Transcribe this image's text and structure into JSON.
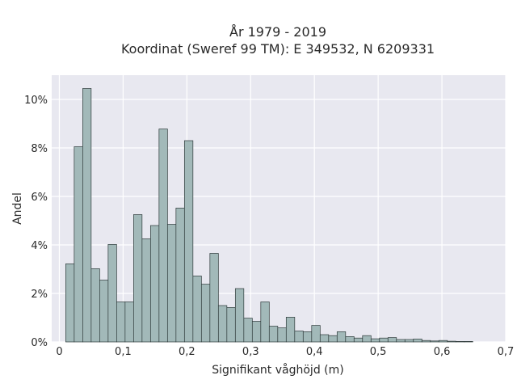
{
  "chart_data": {
    "type": "bar",
    "title_lines": [
      "År 1979 - 2019",
      "Koordinat (Sweref 99 TM): E 349532, N 6209331"
    ],
    "xlabel": "Signifikant våghöjd (m)",
    "ylabel": "Andel",
    "xlim": [
      -0.012,
      0.7
    ],
    "ylim": [
      0,
      11.0
    ],
    "x_ticks": [
      0,
      0.1,
      0.2,
      0.3,
      0.4,
      0.5,
      0.6,
      0.7
    ],
    "x_tick_labels": [
      "0",
      "0,1",
      "0,2",
      "0,3",
      "0,4",
      "0,5",
      "0,6",
      "0,7"
    ],
    "y_ticks": [
      0,
      2,
      4,
      6,
      8,
      10
    ],
    "y_tick_labels": [
      "0%",
      "2%",
      "4%",
      "6%",
      "8%",
      "10%"
    ],
    "grid": true,
    "bin_width": 0.0133,
    "bin_start": 0.01,
    "values": [
      3.22,
      8.05,
      10.45,
      3.02,
      2.55,
      4.02,
      1.65,
      1.65,
      5.25,
      4.25,
      4.8,
      8.78,
      4.85,
      5.52,
      8.3,
      2.72,
      2.38,
      3.65,
      1.5,
      1.42,
      2.2,
      0.98,
      0.85,
      1.65,
      0.65,
      0.58,
      1.02,
      0.45,
      0.42,
      0.68,
      0.3,
      0.26,
      0.42,
      0.22,
      0.16,
      0.26,
      0.13,
      0.16,
      0.18,
      0.1,
      0.1,
      0.12,
      0.06,
      0.04,
      0.06,
      0.03,
      0.02,
      0.02
    ],
    "colors": {
      "bar_fill": "#a2b9b9",
      "bar_stroke": "#2e3a3a",
      "plot_bg": "#e8e8f0",
      "grid": "#ffffff"
    }
  }
}
